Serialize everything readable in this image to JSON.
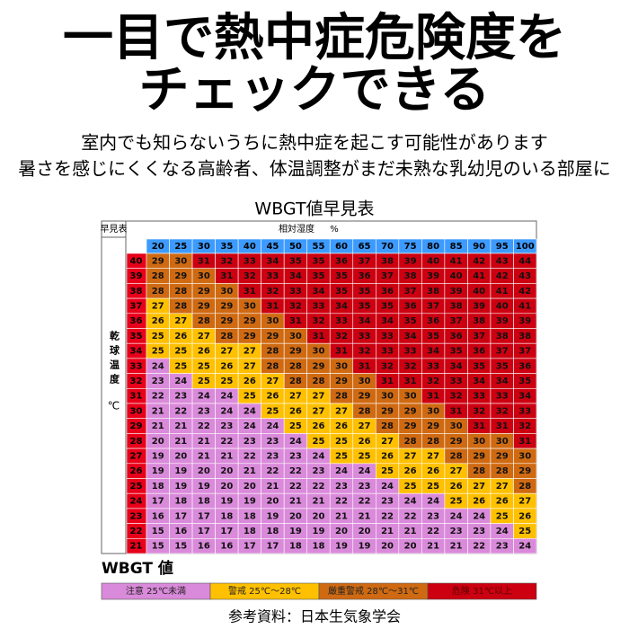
{
  "header": {
    "title_lines": [
      "一目で熱中症危険度を",
      "チェックできる"
    ],
    "description": [
      "室内でも知らないうちに熱中症を起こす可能性があります",
      "暑さを感じにくくなる高齢者、体温調整がまだ未熟な乳幼児のいる部屋に"
    ]
  },
  "table": {
    "title": "WBGT値早見表",
    "corner": "早見表",
    "humidity_label": "相対湿度",
    "humidity_unit": "%",
    "temp_label": "乾球温度",
    "temp_unit": "℃",
    "humidity": [
      20,
      25,
      30,
      35,
      40,
      45,
      50,
      55,
      60,
      65,
      70,
      75,
      80,
      85,
      90,
      95,
      100
    ],
    "rows": [
      {
        "temp": 40,
        "values": [
          29,
          30,
          31,
          32,
          33,
          34,
          35,
          35,
          36,
          37,
          38,
          39,
          40,
          41,
          42,
          43,
          44
        ]
      },
      {
        "temp": 39,
        "values": [
          28,
          29,
          30,
          31,
          32,
          33,
          34,
          35,
          35,
          36,
          37,
          38,
          39,
          40,
          41,
          42,
          43
        ]
      },
      {
        "temp": 38,
        "values": [
          28,
          28,
          29,
          30,
          31,
          32,
          33,
          34,
          35,
          35,
          36,
          37,
          38,
          39,
          40,
          41,
          42
        ]
      },
      {
        "temp": 37,
        "values": [
          27,
          28,
          29,
          29,
          30,
          31,
          32,
          33,
          34,
          35,
          35,
          36,
          37,
          38,
          39,
          40,
          41
        ]
      },
      {
        "temp": 36,
        "values": [
          26,
          27,
          28,
          29,
          29,
          30,
          31,
          32,
          33,
          34,
          34,
          35,
          36,
          37,
          38,
          39,
          39
        ]
      },
      {
        "temp": 35,
        "values": [
          25,
          26,
          27,
          28,
          29,
          29,
          30,
          31,
          32,
          33,
          33,
          34,
          35,
          36,
          37,
          38,
          38
        ]
      },
      {
        "temp": 34,
        "values": [
          25,
          25,
          26,
          27,
          27,
          28,
          29,
          30,
          31,
          32,
          33,
          33,
          34,
          35,
          36,
          37,
          37
        ]
      },
      {
        "temp": 33,
        "values": [
          24,
          25,
          25,
          26,
          27,
          28,
          28,
          29,
          30,
          31,
          32,
          32,
          33,
          34,
          35,
          35,
          36
        ]
      },
      {
        "temp": 32,
        "values": [
          23,
          24,
          25,
          25,
          26,
          27,
          28,
          28,
          29,
          30,
          31,
          31,
          32,
          33,
          34,
          34,
          35
        ]
      },
      {
        "temp": 31,
        "values": [
          22,
          23,
          24,
          24,
          25,
          26,
          27,
          27,
          28,
          29,
          30,
          30,
          31,
          32,
          33,
          33,
          34
        ]
      },
      {
        "temp": 30,
        "values": [
          21,
          22,
          23,
          24,
          24,
          25,
          26,
          27,
          27,
          28,
          29,
          29,
          30,
          31,
          32,
          32,
          33
        ]
      },
      {
        "temp": 29,
        "values": [
          21,
          21,
          22,
          23,
          24,
          24,
          25,
          26,
          26,
          27,
          28,
          29,
          29,
          30,
          31,
          31,
          32
        ]
      },
      {
        "temp": 28,
        "values": [
          20,
          21,
          21,
          22,
          23,
          23,
          24,
          25,
          25,
          26,
          27,
          28,
          28,
          29,
          30,
          30,
          31
        ]
      },
      {
        "temp": 27,
        "values": [
          19,
          20,
          21,
          21,
          22,
          23,
          23,
          24,
          25,
          25,
          26,
          27,
          27,
          28,
          29,
          29,
          30
        ]
      },
      {
        "temp": 26,
        "values": [
          19,
          19,
          20,
          20,
          21,
          22,
          22,
          23,
          24,
          24,
          25,
          26,
          26,
          27,
          28,
          28,
          29
        ]
      },
      {
        "temp": 25,
        "values": [
          18,
          19,
          19,
          20,
          20,
          21,
          22,
          22,
          23,
          23,
          24,
          25,
          25,
          26,
          27,
          27,
          28
        ]
      },
      {
        "temp": 24,
        "values": [
          17,
          18,
          18,
          19,
          19,
          20,
          21,
          21,
          22,
          22,
          23,
          24,
          24,
          25,
          26,
          26,
          27
        ]
      },
      {
        "temp": 23,
        "values": [
          16,
          17,
          17,
          18,
          18,
          19,
          20,
          20,
          21,
          21,
          22,
          22,
          23,
          24,
          24,
          25,
          26
        ]
      },
      {
        "temp": 22,
        "values": [
          15,
          16,
          17,
          17,
          18,
          18,
          19,
          19,
          20,
          20,
          21,
          21,
          22,
          23,
          23,
          24,
          25
        ]
      },
      {
        "temp": 21,
        "values": [
          15,
          15,
          16,
          16,
          17,
          17,
          18,
          18,
          19,
          19,
          20,
          20,
          21,
          21,
          22,
          23,
          24
        ]
      }
    ]
  },
  "legend": {
    "title": "WBGT 値",
    "items": [
      {
        "label": "注意 25℃未満",
        "color": "#da8ada"
      },
      {
        "label": "警戒 25℃～28℃",
        "color": "#ffc000",
        "from": 25
      },
      {
        "label": "厳重警戒 28℃～31℃",
        "color": "#cf6a12",
        "from": 28
      },
      {
        "label": "危険 31℃以上",
        "color": "#cc0011",
        "from": 31
      }
    ]
  },
  "source": "参考資料：日本生気象学会"
}
